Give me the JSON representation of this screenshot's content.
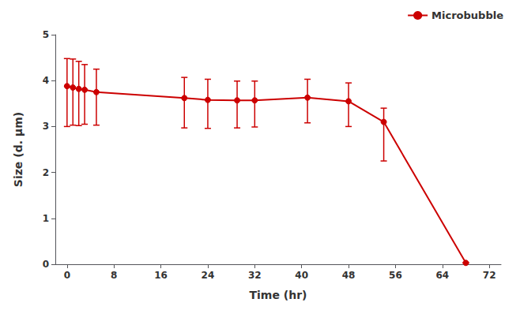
{
  "chart_data": {
    "type": "line",
    "xlabel": "Time (hr)",
    "ylabel": "Size (d. μm)",
    "x": [
      0,
      1,
      2,
      3,
      5,
      20,
      24,
      29,
      32,
      41,
      48,
      54,
      68
    ],
    "series": [
      {
        "name": "Microbubble",
        "color": "#cc0000",
        "marker": "circle",
        "line_style": "solid",
        "values": [
          3.88,
          3.85,
          3.82,
          3.8,
          3.75,
          3.62,
          3.58,
          3.57,
          3.57,
          3.63,
          3.55,
          3.1,
          0.03
        ],
        "yerr_upper": [
          0.6,
          0.62,
          0.6,
          0.55,
          0.5,
          0.45,
          0.45,
          0.42,
          0.42,
          0.4,
          0.4,
          0.3,
          0.0
        ],
        "yerr_lower": [
          0.88,
          0.82,
          0.8,
          0.75,
          0.72,
          0.65,
          0.62,
          0.6,
          0.58,
          0.55,
          0.55,
          0.85,
          0.0
        ]
      }
    ],
    "xlim": [
      -2,
      74
    ],
    "ylim": [
      0,
      5
    ],
    "xticks": [
      0,
      8,
      16,
      24,
      32,
      40,
      48,
      56,
      64,
      72
    ],
    "yticks": [
      0,
      1,
      2,
      3,
      4,
      5
    ],
    "grid": false,
    "legend": "upper right"
  }
}
